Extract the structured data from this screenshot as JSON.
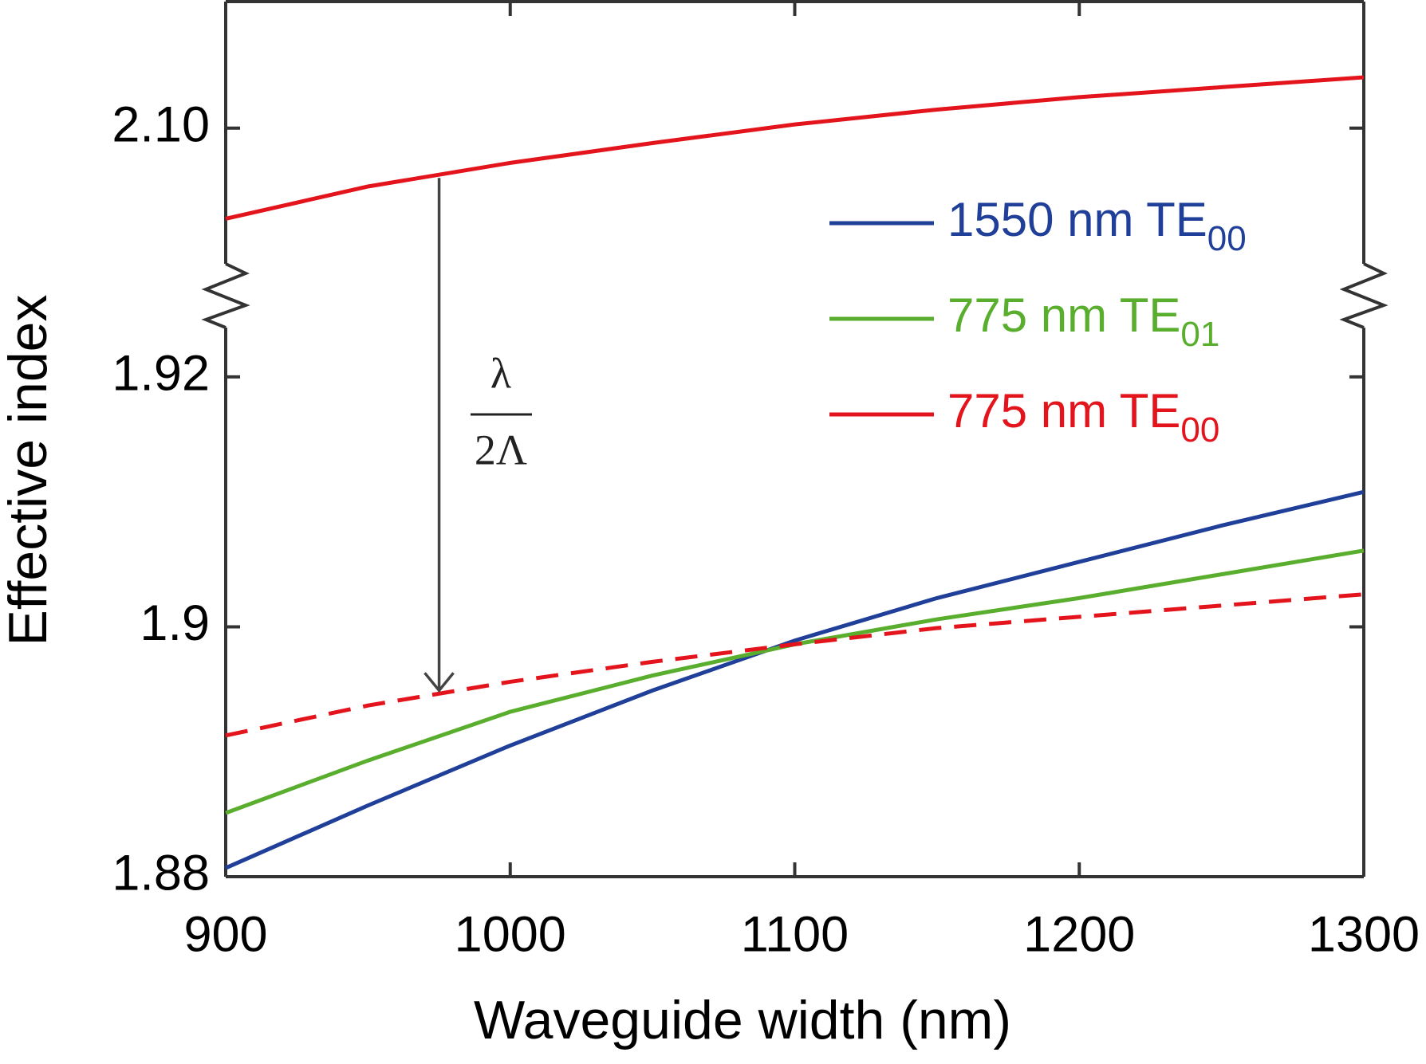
{
  "chart_data": {
    "type": "line",
    "x_label": "Waveguide width (nm)",
    "y_label": "Effective index",
    "x": [
      900,
      950,
      1000,
      1050,
      1100,
      1150,
      1200,
      1250,
      1300
    ],
    "xlim": [
      900,
      1300
    ],
    "xticks": [
      900,
      1000,
      1100,
      1200,
      1300
    ],
    "ylim": [
      1.88,
      1.9265
    ],
    "yticks": [
      1.88,
      1.9,
      1.92
    ],
    "ylim_upper": [
      2.0865,
      2.1102
    ],
    "yticks_upper": [
      {
        "value": 2.1,
        "label": "2.10"
      }
    ],
    "series": [
      {
        "name": "1550 nm TE",
        "name_sub": "00",
        "color": "#1f3f99",
        "values": [
          1.8807,
          1.8857,
          1.8905,
          1.8949,
          1.8989,
          1.9023,
          1.9052,
          1.9081,
          1.9108
        ]
      },
      {
        "name": "775 nm TE",
        "name_sub": "01",
        "color": "#5aae2e",
        "values": [
          1.8851,
          1.8893,
          1.8932,
          1.8961,
          1.8986,
          1.9006,
          1.9023,
          1.9042,
          1.9061
        ]
      },
      {
        "name": "775 nm TE",
        "name_sub": "00",
        "color": "#e3141c",
        "axis": "upper",
        "values": [
          2.0927,
          2.0953,
          2.0972,
          2.0988,
          2.1003,
          2.1015,
          2.1025,
          2.1033,
          2.1041
        ]
      },
      {
        "color": "#e3141c",
        "dashed": true,
        "values": [
          1.8913,
          1.8937,
          1.8956,
          1.8972,
          1.8986,
          1.8999,
          1.9008,
          1.9017,
          1.9026
        ]
      }
    ],
    "annotation": {
      "x": 975,
      "numerator": "λ",
      "denominator": "2Λ"
    }
  }
}
